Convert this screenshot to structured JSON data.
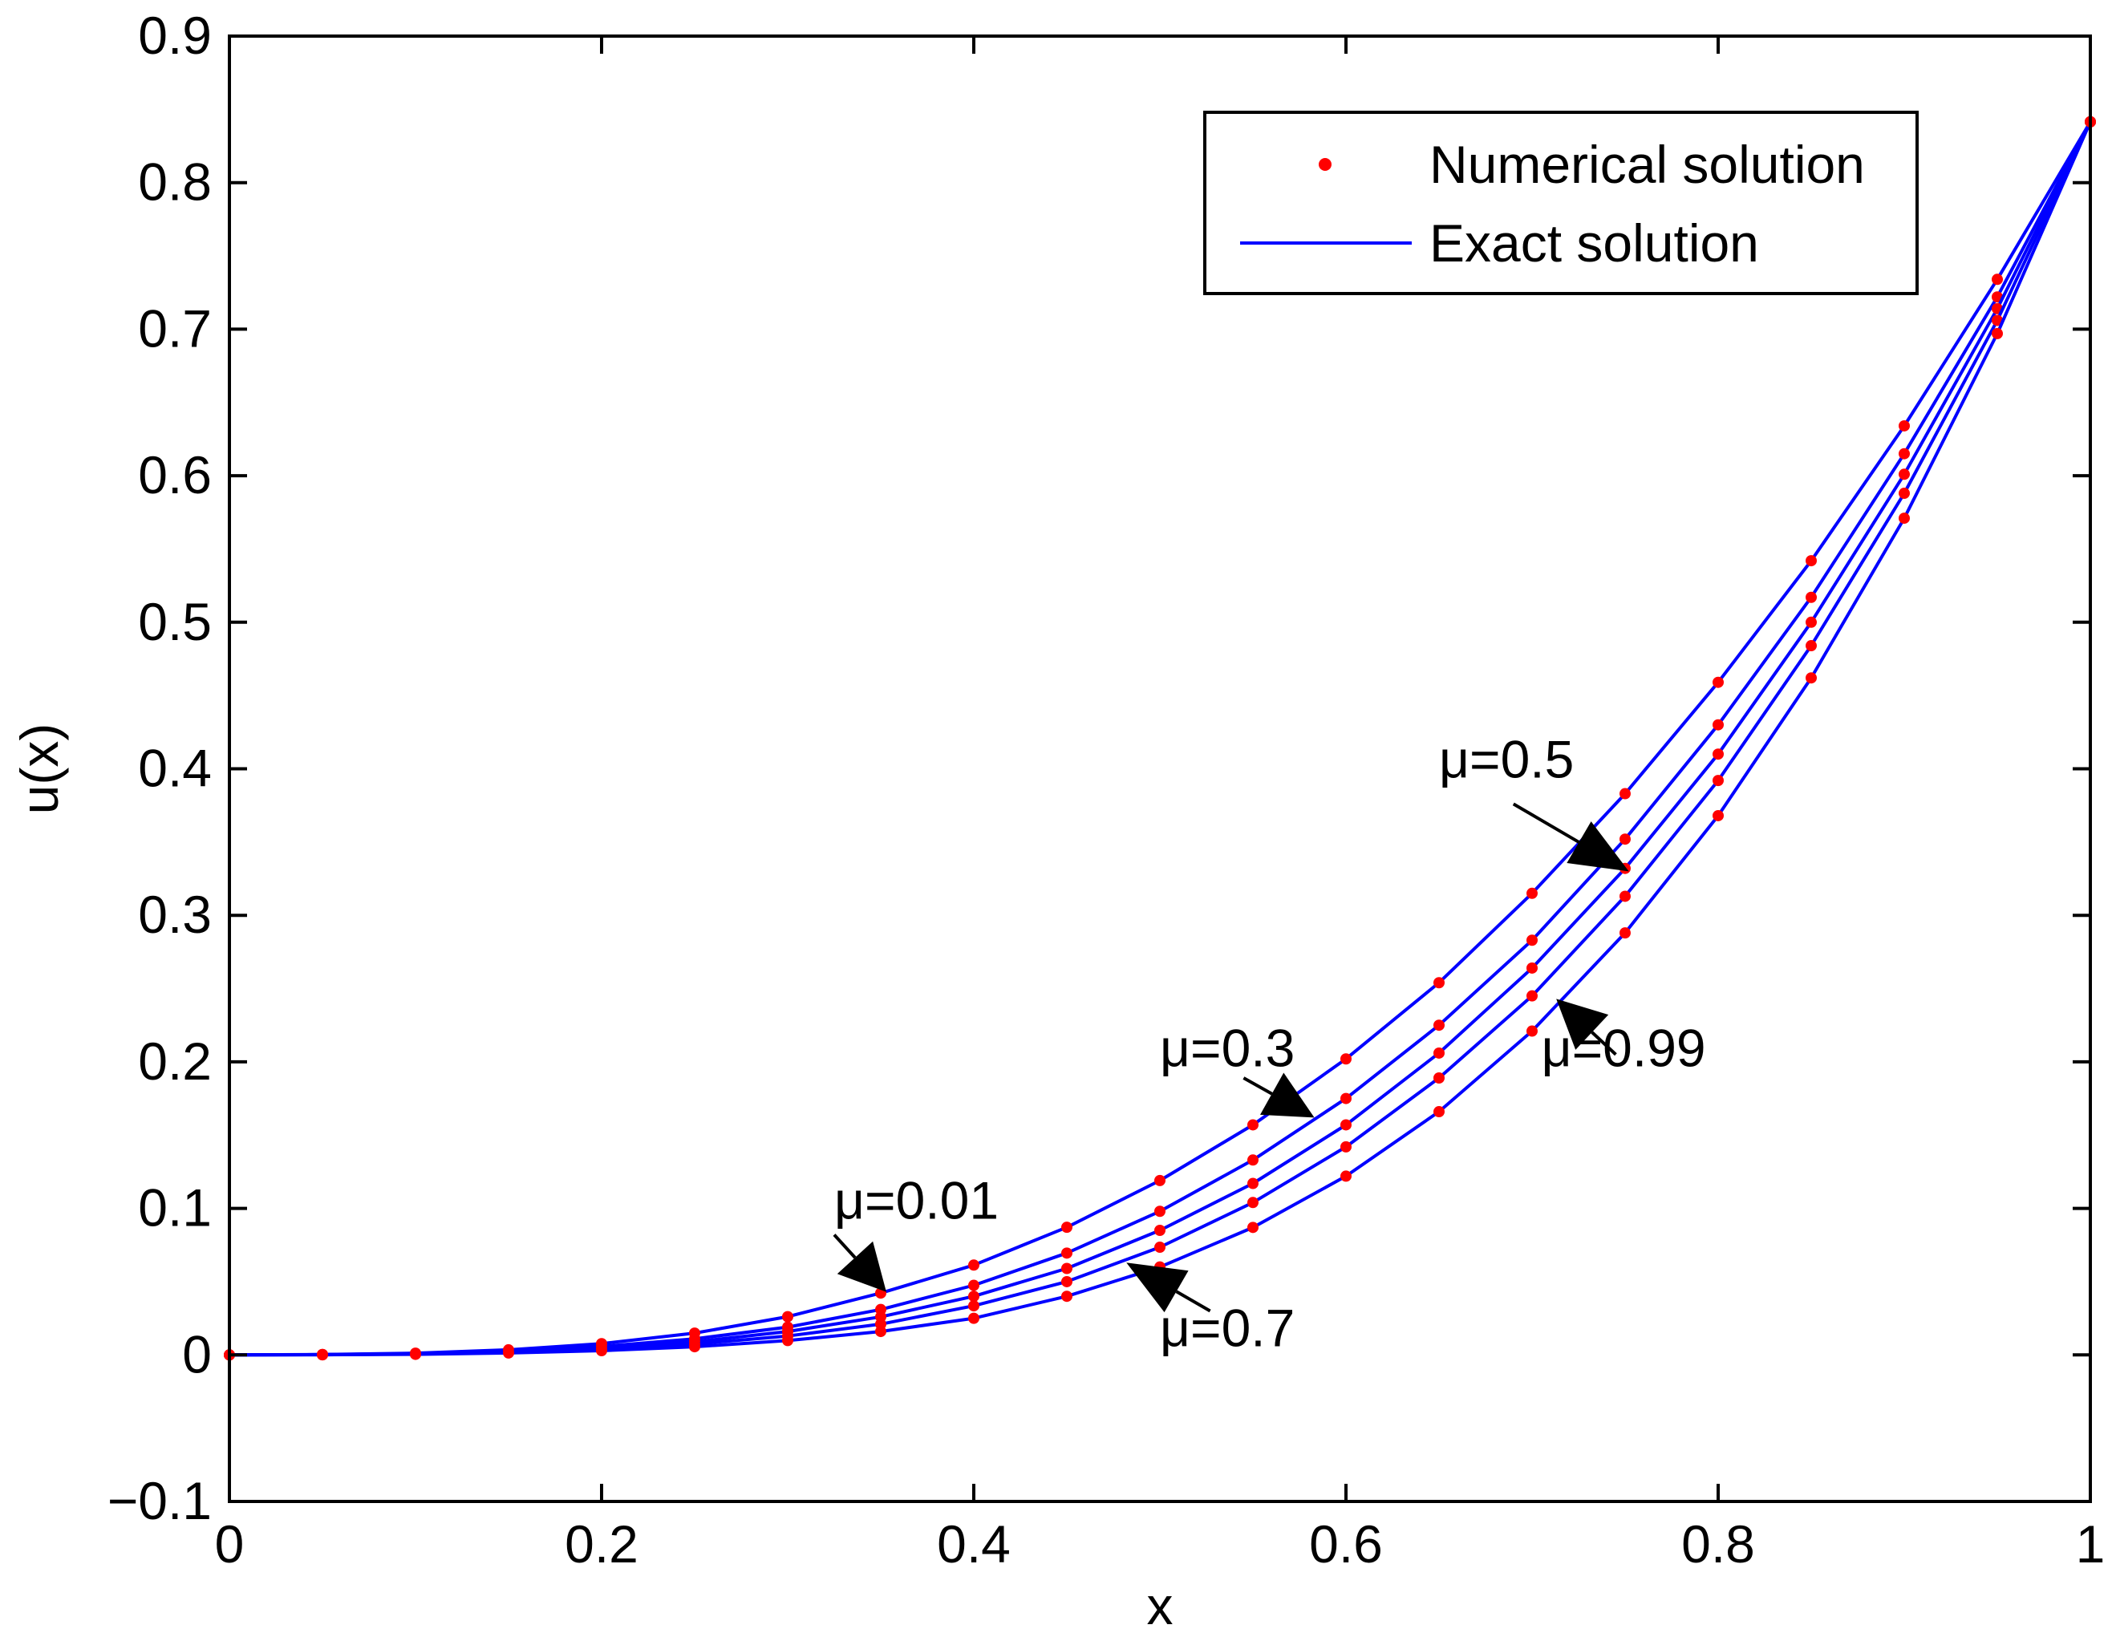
{
  "chart_data": {
    "type": "line",
    "title": "",
    "xlabel": "x",
    "ylabel": "u(x)",
    "xlim": [
      0,
      1
    ],
    "ylim": [
      -0.1,
      0.9
    ],
    "xticks": [
      0,
      0.2,
      0.4,
      0.6,
      0.8,
      1
    ],
    "xtick_labels": [
      "0",
      "0.2",
      "0.4",
      "0.6",
      "0.8",
      "1"
    ],
    "yticks": [
      -0.1,
      0,
      0.1,
      0.2,
      0.3,
      0.4,
      0.5,
      0.6,
      0.7,
      0.8,
      0.9
    ],
    "ytick_labels": [
      "−0.1",
      "0",
      "0.1",
      "0.2",
      "0.3",
      "0.4",
      "0.5",
      "0.6",
      "0.7",
      "0.8",
      "0.9"
    ],
    "grid": false,
    "legend": {
      "position": "top-right",
      "entries": [
        {
          "label": "Numerical solution",
          "style": "marker",
          "color": "#ff0000"
        },
        {
          "label": "Exact solution",
          "style": "line",
          "color": "#0000ff"
        }
      ]
    },
    "colors": {
      "line": "#0000ff",
      "marker": "#ff0000",
      "axes": "#000000",
      "annotation": "#000000"
    },
    "x": [
      0,
      0.05,
      0.1,
      0.15,
      0.2,
      0.25,
      0.3,
      0.35,
      0.4,
      0.45,
      0.5,
      0.55,
      0.6,
      0.65,
      0.7,
      0.75,
      0.8,
      0.85,
      0.9,
      0.95,
      1
    ],
    "series": [
      {
        "name": "μ=0.01",
        "values": [
          0,
          0.0003,
          0.0012,
          0.0035,
          0.0077,
          0.0149,
          0.0261,
          0.0422,
          0.0613,
          0.0871,
          0.119,
          0.157,
          0.202,
          0.254,
          0.315,
          0.383,
          0.459,
          0.542,
          0.634,
          0.734,
          0.8415
        ]
      },
      {
        "name": "μ=0.3",
        "values": [
          0,
          0.0002,
          0.0009,
          0.0027,
          0.0058,
          0.011,
          0.019,
          0.031,
          0.0475,
          0.0695,
          0.098,
          0.133,
          0.175,
          0.225,
          0.283,
          0.352,
          0.43,
          0.517,
          0.615,
          0.722,
          0.8415
        ]
      },
      {
        "name": "μ=0.5",
        "values": [
          0,
          0.0002,
          0.0008,
          0.0022,
          0.0047,
          0.009,
          0.016,
          0.026,
          0.04,
          0.059,
          0.085,
          0.117,
          0.157,
          0.206,
          0.264,
          0.332,
          0.41,
          0.5,
          0.601,
          0.714,
          0.8415
        ]
      },
      {
        "name": "μ=0.7",
        "values": [
          0,
          0.0001,
          0.0006,
          0.0018,
          0.0039,
          0.0074,
          0.0129,
          0.021,
          0.0335,
          0.05,
          0.0735,
          0.104,
          0.142,
          0.189,
          0.245,
          0.313,
          0.392,
          0.484,
          0.588,
          0.706,
          0.8415
        ]
      },
      {
        "name": "μ=0.99",
        "values": [
          0,
          0.0001,
          0.0004,
          0.0013,
          0.0029,
          0.0056,
          0.0098,
          0.016,
          0.025,
          0.04,
          0.06,
          0.087,
          0.122,
          0.166,
          0.221,
          0.288,
          0.368,
          0.462,
          0.571,
          0.697,
          0.8415
        ]
      }
    ],
    "annotations": [
      {
        "text": "μ=0.01",
        "target": [
          0.353,
          0.043
        ],
        "text_at": [
          0.325,
          0.093
        ],
        "tail": [
          0.325,
          0.082
        ]
      },
      {
        "text": "μ=0.3",
        "target": [
          0.583,
          0.162
        ],
        "text_at": [
          0.5,
          0.197
        ],
        "tail": [
          0.545,
          0.189
        ]
      },
      {
        "text": "μ=0.5",
        "target": [
          0.752,
          0.33
        ],
        "text_at": [
          0.65,
          0.394
        ],
        "tail": [
          0.69,
          0.376
        ]
      },
      {
        "text": "μ=0.7",
        "target": [
          0.482,
          0.063
        ],
        "text_at": [
          0.5,
          0.006
        ],
        "tail": [
          0.527,
          0.03
        ]
      },
      {
        "text": "μ=0.99",
        "target": [
          0.713,
          0.243
        ],
        "text_at": [
          0.705,
          0.197
        ],
        "tail": [
          0.745,
          0.205
        ]
      }
    ]
  }
}
